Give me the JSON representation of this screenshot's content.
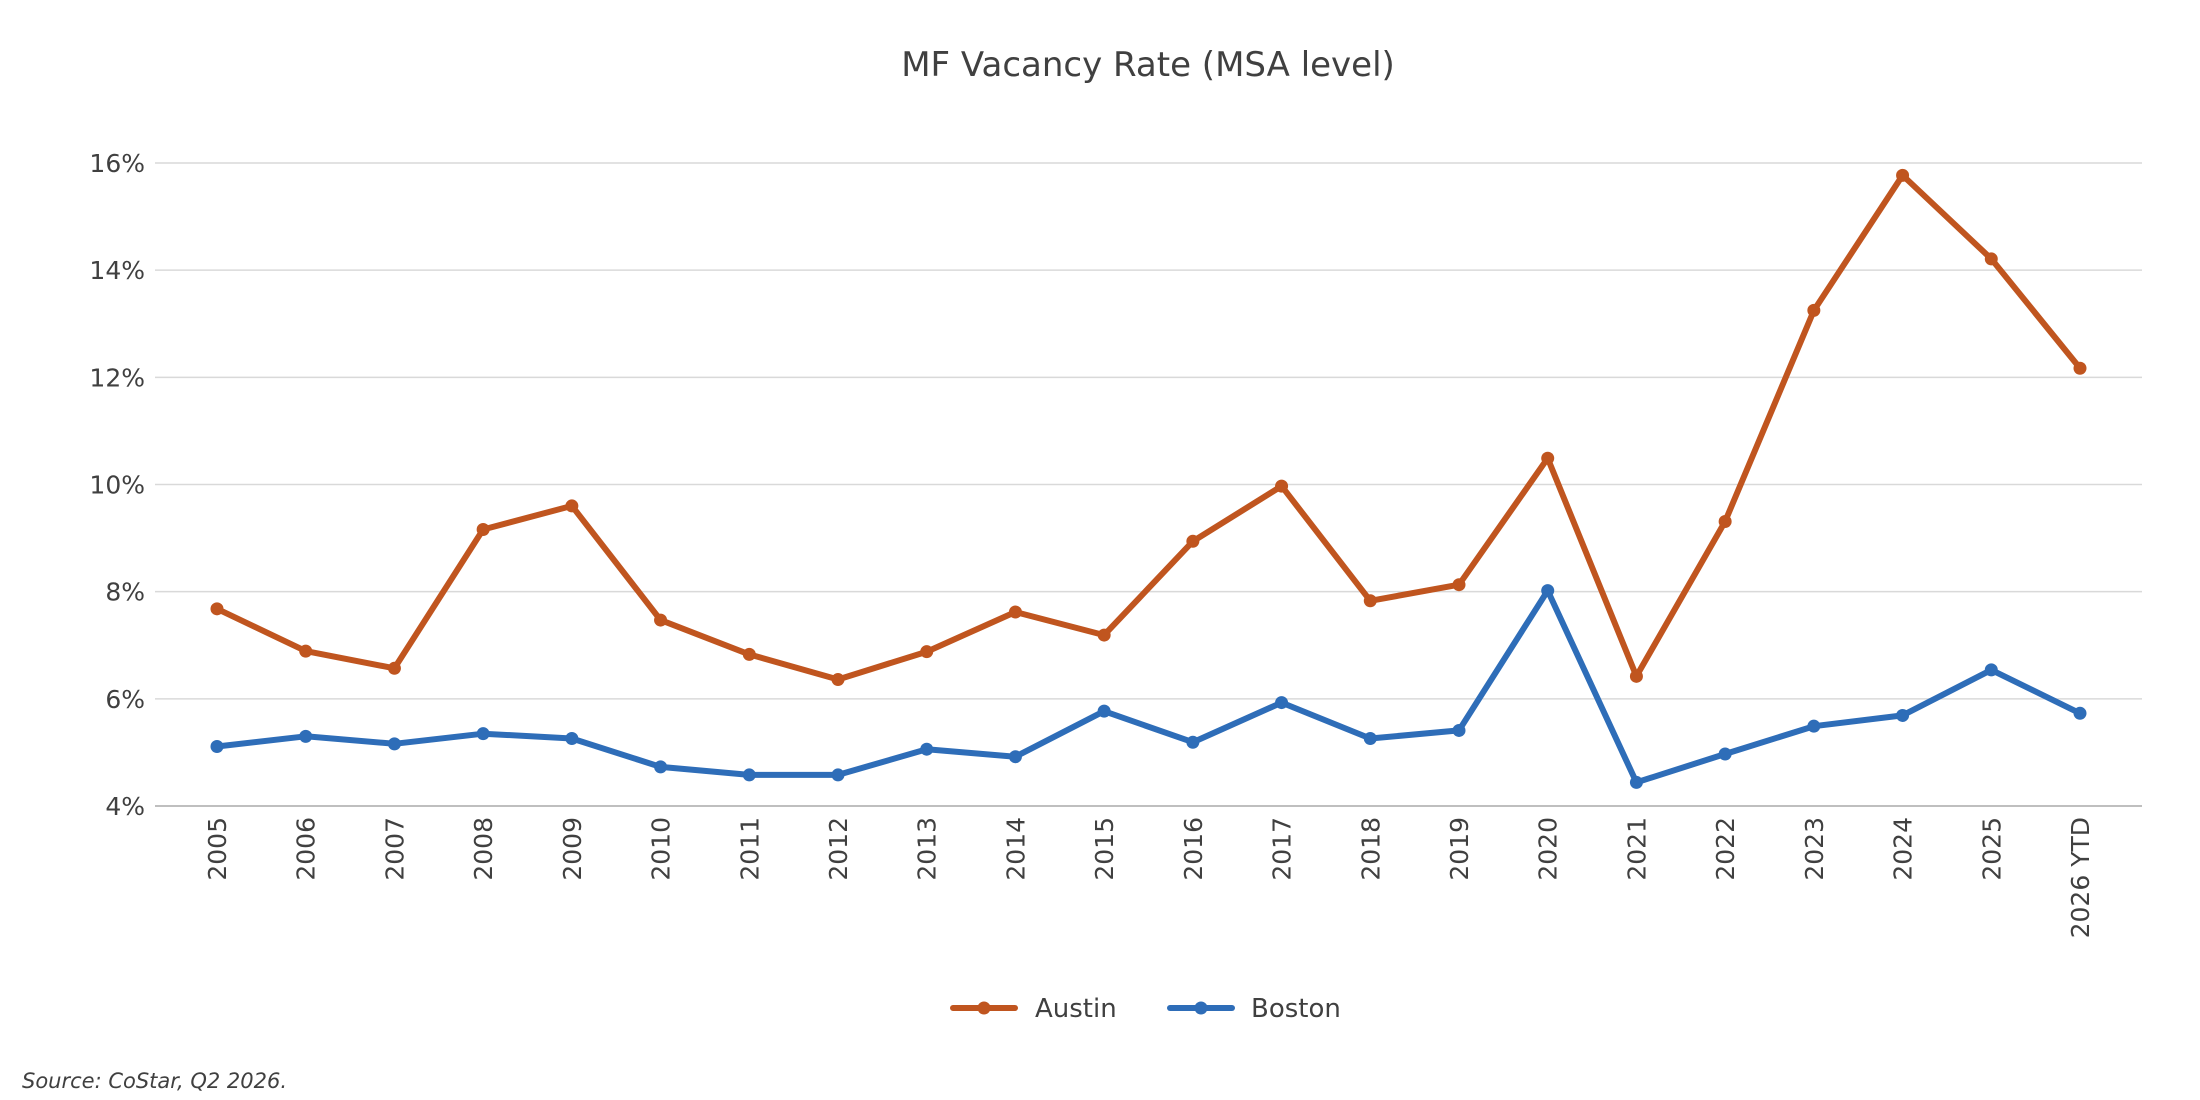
{
  "chart_data": {
    "type": "line",
    "title": "MF Vacancy Rate (MSA level)",
    "xlabel": "",
    "ylabel": "",
    "categories": [
      "2005",
      "2006",
      "2007",
      "2008",
      "2009",
      "2010",
      "2011",
      "2012",
      "2013",
      "2014",
      "2015",
      "2016",
      "2017",
      "2018",
      "2019",
      "2020",
      "2021",
      "2022",
      "2023",
      "2024",
      "2025",
      "2026 YTD"
    ],
    "ylim": [
      4,
      16
    ],
    "yticks": [
      4,
      6,
      8,
      10,
      12,
      14,
      16
    ],
    "ytick_labels": [
      "4%",
      "6%",
      "8%",
      "10%",
      "12%",
      "14%",
      "16%"
    ],
    "grid": true,
    "legend_position": "bottom",
    "series": [
      {
        "name": "Austin",
        "color": "#c0551f",
        "values": [
          7.68,
          6.89,
          6.57,
          9.16,
          9.6,
          7.47,
          6.83,
          6.36,
          6.88,
          7.62,
          7.19,
          8.94,
          9.97,
          7.83,
          8.13,
          10.49,
          6.42,
          9.31,
          13.25,
          15.77,
          14.21,
          12.17
        ]
      },
      {
        "name": "Boston",
        "color": "#2e6db8",
        "values": [
          5.11,
          5.3,
          5.16,
          5.35,
          5.26,
          4.73,
          4.58,
          4.58,
          5.06,
          4.92,
          5.77,
          5.19,
          5.93,
          5.26,
          5.41,
          8.02,
          4.44,
          4.97,
          5.49,
          5.69,
          6.54,
          5.73
        ]
      }
    ]
  },
  "source": "Source: CoStar, Q2 2026."
}
